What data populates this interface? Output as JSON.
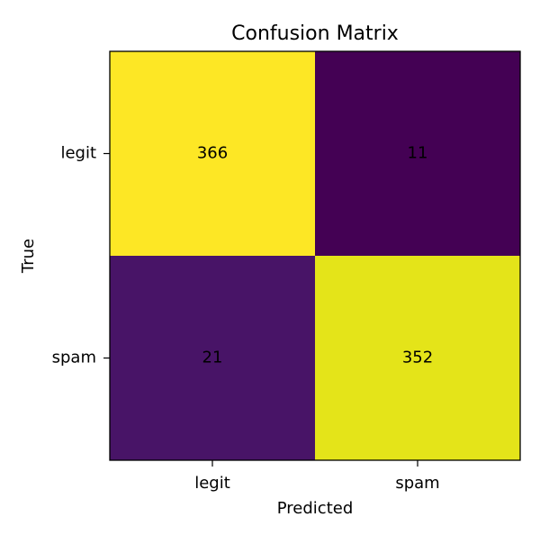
{
  "chart_data": {
    "type": "heatmap",
    "title": "Confusion Matrix",
    "xlabel": "Predicted",
    "ylabel": "True",
    "x_categories": [
      "legit",
      "spam"
    ],
    "y_categories": [
      "legit",
      "spam"
    ],
    "values": [
      [
        366,
        11
      ],
      [
        21,
        352
      ]
    ],
    "colormap": "viridis",
    "value_range": [
      11,
      366
    ],
    "grid": false,
    "cell_colors": [
      [
        "#fde725",
        "#440154"
      ],
      [
        "#481467",
        "#e4e419"
      ]
    ]
  }
}
